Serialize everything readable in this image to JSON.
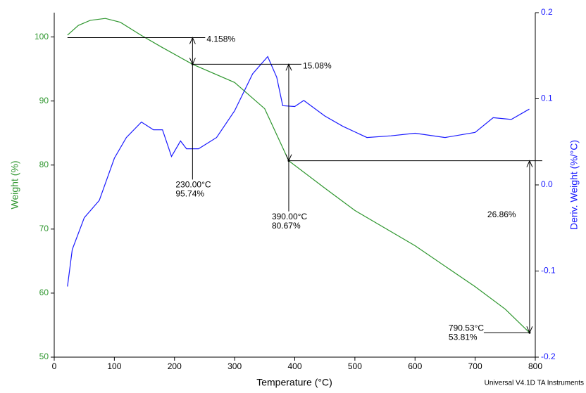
{
  "chart_data": {
    "type": "line",
    "x_label": "Temperature (°C)",
    "y_label": "Weight (%)",
    "y2_label": "Deriv. Weight (%/°C)",
    "footer": "Universal V4.1D TA Instruments",
    "xlim": [
      0,
      800
    ],
    "xticks": [
      0,
      100,
      200,
      300,
      400,
      500,
      600,
      700,
      800
    ],
    "ylim": [
      50,
      103.8
    ],
    "yticks": [
      50,
      60,
      70,
      80,
      90,
      100
    ],
    "y2lim": [
      -0.2,
      0.2
    ],
    "y2ticks": [
      -0.2,
      -0.1,
      {
        "value": 0,
        "label": "0.0"
      },
      0.1,
      0.2
    ],
    "series": [
      {
        "name": "Weight (%)",
        "color": "#2e962e",
        "x": [
          22,
          40,
          60,
          85,
          110,
          144,
          179,
          230,
          300,
          350,
          390,
          450,
          500,
          600,
          700,
          750,
          790.53
        ],
        "values": [
          100.3,
          101.8,
          102.6,
          102.9,
          102.3,
          100.3,
          98.4,
          95.74,
          92.9,
          88.8,
          80.67,
          76.4,
          72.9,
          67.4,
          61,
          57.5,
          53.81
        ]
      },
      {
        "name": "Deriv. Weight (%/°C)",
        "color": "#1a1aff",
        "axis": "y2",
        "x": [
          22,
          30,
          50,
          75,
          100,
          120,
          145,
          165,
          180,
          195,
          210,
          220,
          240,
          270,
          300,
          330,
          355,
          370,
          380,
          400,
          415,
          450,
          480,
          520,
          560,
          600,
          650,
          700,
          730,
          760,
          790
        ],
        "values": [
          -0.118,
          -0.075,
          -0.038,
          -0.018,
          0.031,
          0.055,
          0.073,
          0.064,
          0.064,
          0.033,
          0.051,
          0.042,
          0.042,
          0.055,
          0.086,
          0.129,
          0.149,
          0.125,
          0.092,
          0.091,
          0.098,
          0.08,
          0.068,
          0.055,
          0.057,
          0.06,
          0.055,
          0.061,
          0.078,
          0.076,
          0.088
        ]
      }
    ],
    "points": [
      {
        "x": 230,
        "y": 95.74,
        "x_label": "230.00°C",
        "y_label": "95.74%"
      },
      {
        "x": 390,
        "y": 80.67,
        "x_label": "390.00°C",
        "y_label": "80.67%"
      },
      {
        "x": 790.53,
        "y": 53.81,
        "x_label": "790.53°C",
        "y_label": "53.81%"
      }
    ],
    "steps": [
      {
        "value": 4.158,
        "label": "4.158%"
      },
      {
        "value": 15.08,
        "label": "15.08%"
      },
      {
        "value": 26.86,
        "label": "26.86%"
      }
    ]
  }
}
